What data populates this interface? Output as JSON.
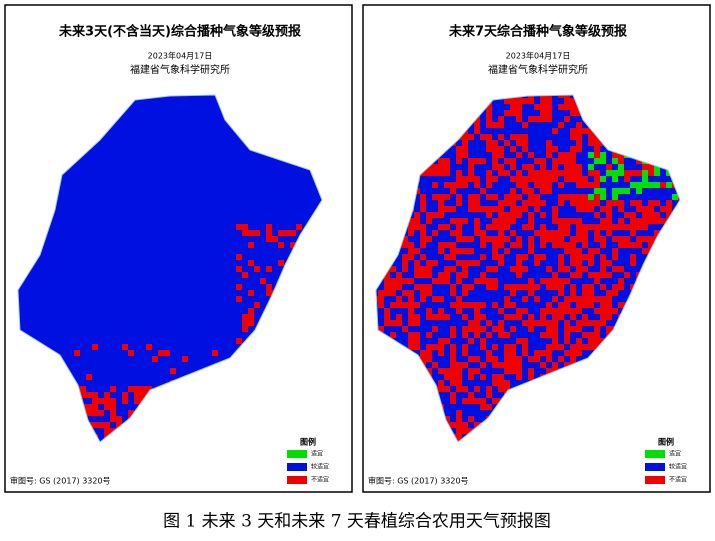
{
  "panels": [
    {
      "title": "未来3天(不含当天)综合播种气象等级预报",
      "date": "2023年04月17日",
      "org": "福建省气象科学研究所",
      "legend": {
        "title": "图例",
        "items": [
          {
            "label": "适宜",
            "color": "#00e000"
          },
          {
            "label": "较适宜",
            "color": "#0010e0"
          },
          {
            "label": "不适宜",
            "color": "#f00000"
          }
        ]
      },
      "approval": "审图号: GS (2017) 3320号"
    },
    {
      "title": "未来7天综合播种气象等级预报",
      "date": "2023年04月17日",
      "org": "福建省气象科学研究所",
      "legend": {
        "title": "图例",
        "items": [
          {
            "label": "适宜",
            "color": "#00e000"
          },
          {
            "label": "较适宜",
            "color": "#0010e0"
          },
          {
            "label": "不适宜",
            "color": "#f00000"
          }
        ]
      },
      "approval": "审图号: GS (2017) 3320号"
    }
  ],
  "caption": "图 1 未来 3 天和未来 7 天春植综合农用天气预报图"
}
